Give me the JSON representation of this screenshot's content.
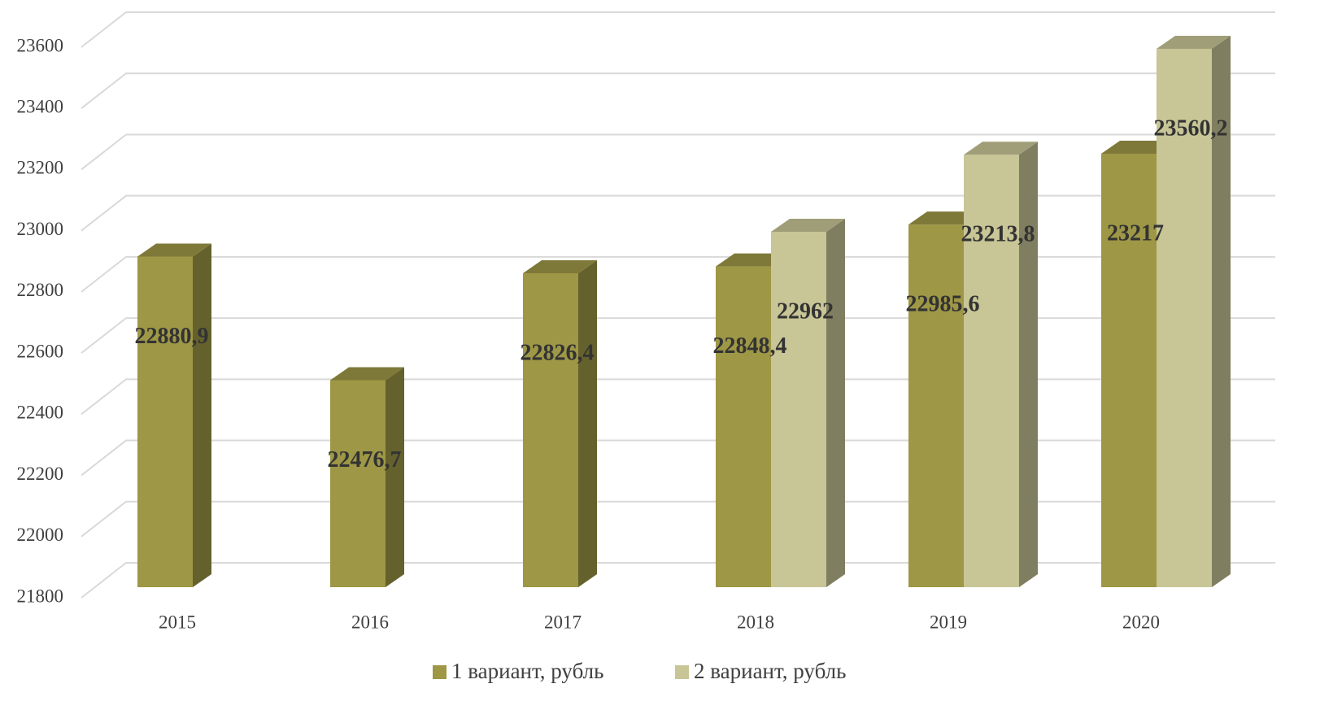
{
  "chart_data": {
    "type": "bar3d",
    "categories": [
      "2015",
      "2016",
      "2017",
      "2018",
      "2019",
      "2020"
    ],
    "series": [
      {
        "name": "1 вариант, рубль",
        "color": "#9e9746",
        "values": [
          22880.9,
          22476.7,
          22826.4,
          22848.4,
          22985.6,
          23217
        ],
        "value_labels": [
          "22880,9",
          "22476,7",
          "22826,4",
          "22848,4",
          "22985,6",
          "23217"
        ]
      },
      {
        "name": "2 вариант, рубль",
        "color": "#c8c596",
        "values": [
          null,
          null,
          null,
          22962,
          23213.8,
          23560.2
        ],
        "value_labels": [
          null,
          null,
          null,
          "22962",
          "23213,8",
          "23560,2"
        ]
      }
    ],
    "ylim": [
      21800,
      23600
    ],
    "yticks": [
      21800,
      22000,
      22200,
      22400,
      22600,
      22800,
      23000,
      23200,
      23400,
      23600
    ],
    "grid": true,
    "legend": "bottom"
  }
}
